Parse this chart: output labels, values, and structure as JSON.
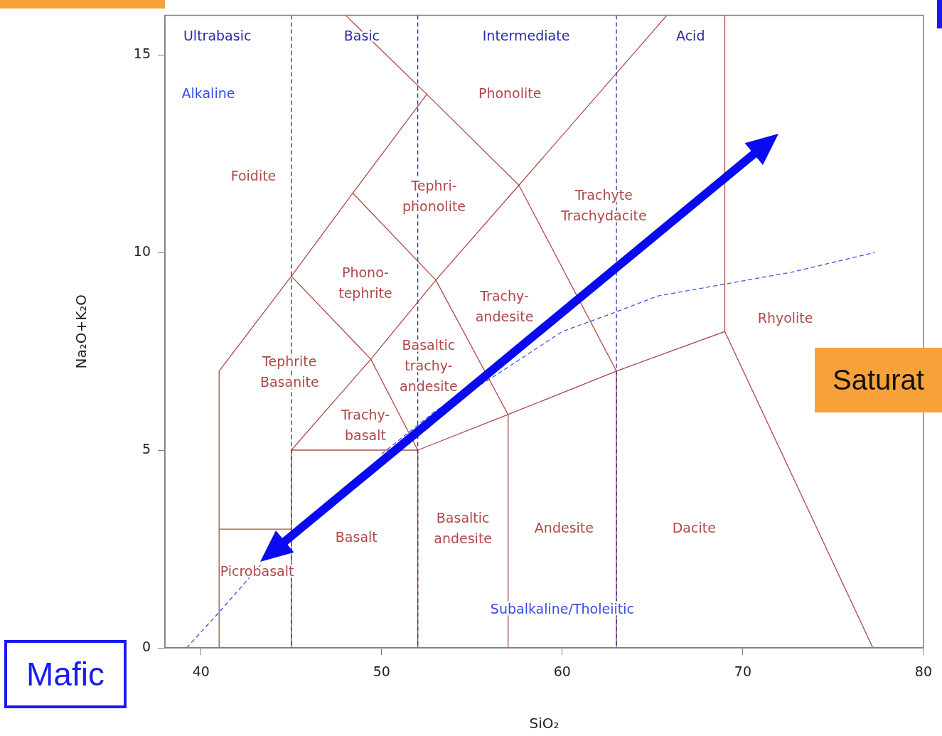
{
  "chart_data": {
    "type": "line",
    "xlabel": "SiO₂",
    "ylabel": "Na₂O+K₂O",
    "xlim": [
      38,
      80
    ],
    "ylim": [
      0,
      16
    ],
    "xticks": [
      40,
      50,
      60,
      70,
      80
    ],
    "yticks": [
      0,
      5,
      10,
      15
    ],
    "grid": false,
    "legend": false,
    "marker": "none",
    "series": [
      {
        "color": "#b04848",
        "x": [
          41,
          41,
          45,
          48.4,
          52.5
        ],
        "values": [
          0,
          7,
          9.4,
          11.5,
          14
        ]
      },
      {
        "color": "#b04848",
        "x": [
          41,
          45
        ],
        "values": [
          3,
          3
        ]
      },
      {
        "color": "#b04848",
        "x": [
          45,
          45,
          52,
          57,
          63,
          69,
          77.2
        ],
        "values": [
          0,
          5,
          5,
          5.9,
          7,
          8,
          0
        ]
      },
      {
        "color": "#b04848",
        "x": [
          69,
          69
        ],
        "values": [
          8,
          16
        ]
      },
      {
        "color": "#b04848",
        "x": [
          52,
          52
        ],
        "values": [
          0,
          5
        ]
      },
      {
        "color": "#b04848",
        "x": [
          57,
          57
        ],
        "values": [
          0,
          5.9
        ]
      },
      {
        "color": "#b04848",
        "x": [
          63,
          63
        ],
        "values": [
          0,
          7
        ]
      },
      {
        "color": "#b04848",
        "x": [
          45,
          49.4,
          53,
          57.6,
          65.8
        ],
        "values": [
          5,
          7.3,
          9.3,
          11.7,
          16
        ]
      },
      {
        "color": "#b04848",
        "x": [
          45,
          49.4,
          52
        ],
        "values": [
          9.4,
          7.3,
          5
        ]
      },
      {
        "color": "#b04848",
        "x": [
          48.4,
          53,
          57
        ],
        "values": [
          11.5,
          9.3,
          5.9
        ]
      },
      {
        "color": "#b04848",
        "x": [
          48,
          52.5,
          57.6,
          63
        ],
        "values": [
          16,
          14,
          11.7,
          7
        ]
      },
      {
        "color": "#3a55e8",
        "line_style": "dashed",
        "x": [
          39.2,
          41,
          43.3,
          47,
          50,
          53,
          56,
          60,
          63,
          65.3,
          69,
          72.7,
          77.3
        ],
        "values": [
          0,
          0.9,
          2.1,
          null,
          4.9,
          6,
          6.8,
          8,
          8.5,
          8.9,
          9.2,
          9.5,
          10
        ]
      }
    ],
    "ref_lines": [
      {
        "axis": "x",
        "value": 45,
        "color": "#2a2aa8",
        "line_style": "dashed"
      },
      {
        "axis": "x",
        "value": 52,
        "color": "#2a2aa8",
        "line_style": "dashed"
      },
      {
        "axis": "x",
        "value": 63,
        "color": "#2a2aa8",
        "line_style": "dashed"
      }
    ],
    "annotations": [
      "Ultrabasic",
      "Basic",
      "Intermediate",
      "Acid",
      "Alkaline",
      "Subalkaline/Tholeiitic",
      "Foidite",
      "Phonolite",
      "Tephri-\nphonolite",
      "Trachyte\nTrachydacite",
      "Phono-\ntephrite",
      "Trachy-\nandesite",
      "Tephrite\nBasanite",
      "Basaltic\ntrachy-\nandesite",
      "Trachy-\nbasalt",
      "Rhyolite",
      "Picrobasalt",
      "Basalt",
      "Basaltic\nandesite",
      "Andesite",
      "Dacite",
      "Mafic",
      "Saturat"
    ]
  }
}
